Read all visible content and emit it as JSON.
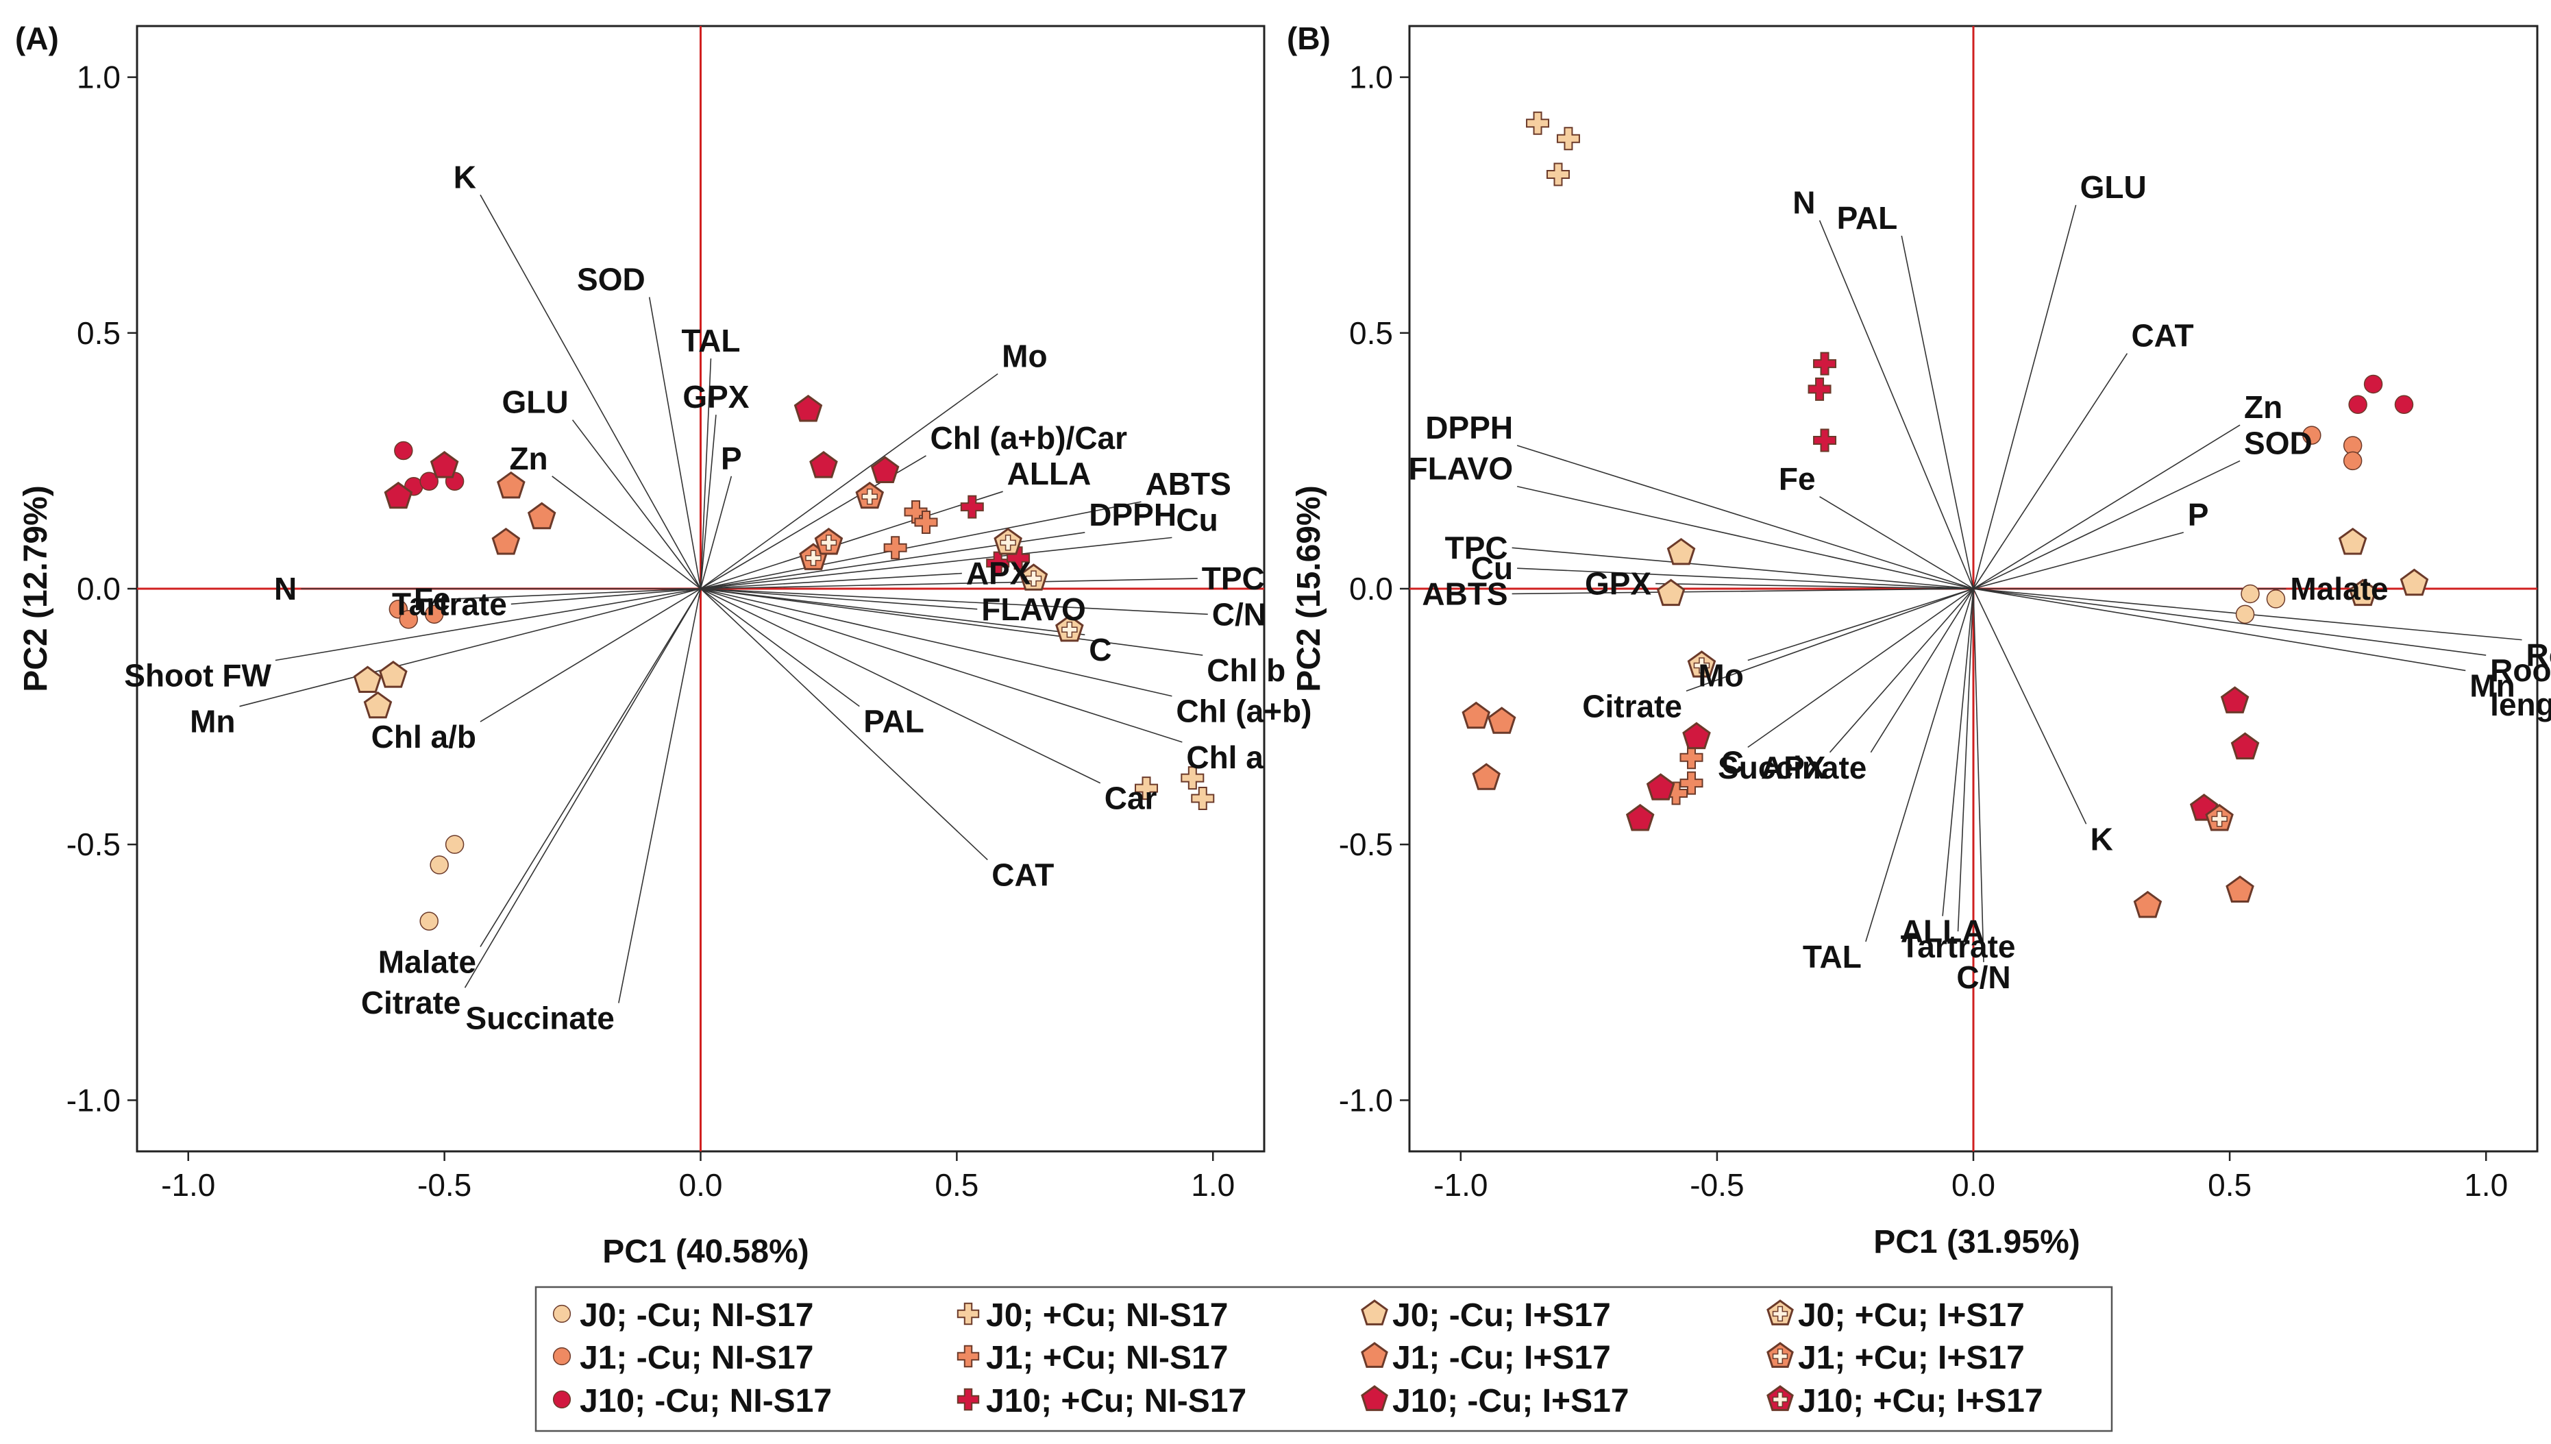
{
  "colors": {
    "J0": "#f6cfa0",
    "J1": "#ef8a62",
    "J10": "#d1183f",
    "axis_line": "#d02020",
    "vector": "#333333",
    "frame": "#222222",
    "marker_edge": "#6b3a2a"
  },
  "legend": {
    "placement": "bottom-center",
    "entries": [
      {
        "label": "J0; -Cu; NI-S17",
        "group": "J0",
        "shape": "circle"
      },
      {
        "label": "J0; +Cu; NI-S17",
        "group": "J0",
        "shape": "cross"
      },
      {
        "label": "J0; -Cu; I+S17",
        "group": "J0",
        "shape": "pentagon"
      },
      {
        "label": "J0; +Cu; I+S17",
        "group": "J0",
        "shape": "pentagon-cross"
      },
      {
        "label": "J1; -Cu; NI-S17",
        "group": "J1",
        "shape": "circle"
      },
      {
        "label": "J1; +Cu; NI-S17",
        "group": "J1",
        "shape": "cross"
      },
      {
        "label": "J1; -Cu; I+S17",
        "group": "J1",
        "shape": "pentagon"
      },
      {
        "label": "J1; +Cu; I+S17",
        "group": "J1",
        "shape": "pentagon-cross"
      },
      {
        "label": "J10; -Cu; NI-S17",
        "group": "J10",
        "shape": "circle"
      },
      {
        "label": "J10; +Cu; NI-S17",
        "group": "J10",
        "shape": "cross"
      },
      {
        "label": "J10; -Cu; I+S17",
        "group": "J10",
        "shape": "pentagon"
      },
      {
        "label": "J10; +Cu; I+S17",
        "group": "J10",
        "shape": "pentagon-cross"
      }
    ]
  },
  "chart_data": [
    {
      "type": "scatter",
      "panel_label": "(A)",
      "xlabel": "PC1 (40.58%)",
      "ylabel": "PC2 (12.79%)",
      "xlim": [
        -1.1,
        1.1
      ],
      "ylim": [
        -1.1,
        1.1
      ],
      "xticks": [
        -1.0,
        -0.5,
        0.0,
        0.5,
        1.0
      ],
      "yticks": [
        -1.0,
        -0.5,
        0.0,
        0.5,
        1.0
      ],
      "xtick_labels": [
        "-1.0",
        "-0.5",
        "0.0",
        "0.5",
        "1.0"
      ],
      "ytick_labels": [
        "-1.0",
        "-0.5",
        "0.0",
        "0.5",
        "1.0"
      ],
      "grid": false,
      "loadings": [
        {
          "label": "K",
          "x": -0.43,
          "y": 0.77
        },
        {
          "label": "SOD",
          "x": -0.1,
          "y": 0.57
        },
        {
          "label": "TAL",
          "x": 0.02,
          "y": 0.45
        },
        {
          "label": "GPX",
          "x": 0.03,
          "y": 0.34
        },
        {
          "label": "P",
          "x": 0.06,
          "y": 0.22
        },
        {
          "label": "Mo",
          "x": 0.58,
          "y": 0.42
        },
        {
          "label": "GLU",
          "x": -0.25,
          "y": 0.33
        },
        {
          "label": "Zn",
          "x": -0.29,
          "y": 0.22
        },
        {
          "label": "Chl (a+b)/Car",
          "x": 0.44,
          "y": 0.26
        },
        {
          "label": "ALLA",
          "x": 0.59,
          "y": 0.19
        },
        {
          "label": "ABTS",
          "x": 0.86,
          "y": 0.17
        },
        {
          "label": "DPPH",
          "x": 0.75,
          "y": 0.11
        },
        {
          "label": "Cu",
          "x": 0.92,
          "y": 0.1
        },
        {
          "label": "APX",
          "x": 0.51,
          "y": 0.03
        },
        {
          "label": "TPC",
          "x": 0.97,
          "y": 0.02
        },
        {
          "label": "FLAVO",
          "x": 0.54,
          "y": -0.04
        },
        {
          "label": "C/N",
          "x": 0.99,
          "y": -0.05
        },
        {
          "label": "C",
          "x": 0.75,
          "y": -0.09
        },
        {
          "label": "Chl b",
          "x": 0.98,
          "y": -0.13
        },
        {
          "label": "Chl (a+b)",
          "x": 0.92,
          "y": -0.21
        },
        {
          "label": "Chl a",
          "x": 0.94,
          "y": -0.3
        },
        {
          "label": "Car",
          "x": 0.78,
          "y": -0.38
        },
        {
          "label": "PAL",
          "x": 0.31,
          "y": -0.23
        },
        {
          "label": "CAT",
          "x": 0.56,
          "y": -0.53
        },
        {
          "label": "Tartrate",
          "x": -0.37,
          "y": -0.03
        },
        {
          "label": "N",
          "x": -0.78,
          "y": 0.0
        },
        {
          "label": "Fe",
          "x": -0.48,
          "y": -0.02
        },
        {
          "label": "Shoot FW",
          "x": -0.83,
          "y": -0.14
        },
        {
          "label": "Mn",
          "x": -0.9,
          "y": -0.23
        },
        {
          "label": "Chl a/b",
          "x": -0.43,
          "y": -0.26
        },
        {
          "label": "Malate",
          "x": -0.43,
          "y": -0.7
        },
        {
          "label": "Citrate",
          "x": -0.46,
          "y": -0.78
        },
        {
          "label": "Succinate",
          "x": -0.16,
          "y": -0.81
        }
      ],
      "scores": [
        {
          "group": "J0",
          "shape": "circle",
          "points": [
            [
              -0.48,
              -0.5
            ],
            [
              -0.51,
              -0.54
            ],
            [
              -0.53,
              -0.65
            ]
          ]
        },
        {
          "group": "J1",
          "shape": "circle",
          "points": [
            [
              -0.59,
              -0.04
            ],
            [
              -0.57,
              -0.06
            ],
            [
              -0.52,
              -0.05
            ]
          ]
        },
        {
          "group": "J10",
          "shape": "circle",
          "points": [
            [
              -0.58,
              0.27
            ],
            [
              -0.56,
              0.2
            ],
            [
              -0.53,
              0.21
            ],
            [
              -0.48,
              0.21
            ]
          ]
        },
        {
          "group": "J0",
          "shape": "cross",
          "points": [
            [
              0.87,
              -0.39
            ],
            [
              0.96,
              -0.37
            ],
            [
              0.98,
              -0.41
            ]
          ]
        },
        {
          "group": "J1",
          "shape": "cross",
          "points": [
            [
              0.38,
              0.08
            ],
            [
              0.42,
              0.15
            ],
            [
              0.44,
              0.13
            ]
          ]
        },
        {
          "group": "J10",
          "shape": "cross",
          "points": [
            [
              0.53,
              0.16
            ],
            [
              0.58,
              0.05
            ],
            [
              0.62,
              0.06
            ]
          ]
        },
        {
          "group": "J0",
          "shape": "pentagon",
          "points": [
            [
              -0.65,
              -0.18
            ],
            [
              -0.6,
              -0.17
            ],
            [
              -0.63,
              -0.23
            ]
          ]
        },
        {
          "group": "J1",
          "shape": "pentagon",
          "points": [
            [
              -0.37,
              0.2
            ],
            [
              -0.31,
              0.14
            ],
            [
              -0.38,
              0.09
            ]
          ]
        },
        {
          "group": "J10",
          "shape": "pentagon",
          "points": [
            [
              -0.59,
              0.18
            ],
            [
              -0.5,
              0.24
            ],
            [
              0.21,
              0.35
            ],
            [
              0.24,
              0.24
            ],
            [
              0.36,
              0.23
            ]
          ]
        },
        {
          "group": "J0",
          "shape": "pentagon-cross",
          "points": [
            [
              0.6,
              0.09
            ],
            [
              0.65,
              0.02
            ],
            [
              0.72,
              -0.08
            ]
          ]
        },
        {
          "group": "J1",
          "shape": "pentagon-cross",
          "points": [
            [
              0.22,
              0.06
            ],
            [
              0.25,
              0.09
            ],
            [
              0.33,
              0.18
            ]
          ]
        }
      ]
    },
    {
      "type": "scatter",
      "panel_label": "(B)",
      "xlabel": "PC1 (31.95%)",
      "ylabel": "PC2 (15.69%)",
      "xlim": [
        -1.1,
        1.1
      ],
      "ylim": [
        -1.1,
        1.1
      ],
      "xticks": [
        -1.0,
        -0.5,
        0.0,
        0.5,
        1.0
      ],
      "yticks": [
        -1.0,
        -0.5,
        0.0,
        0.5,
        1.0
      ],
      "xtick_labels": [
        "-1.0",
        "-0.5",
        "0.0",
        "0.5",
        "1.0"
      ],
      "ytick_labels": [
        "-1.0",
        "-0.5",
        "0.0",
        "0.5",
        "1.0"
      ],
      "grid": false,
      "loadings": [
        {
          "label": "N",
          "x": -0.3,
          "y": 0.72
        },
        {
          "label": "PAL",
          "x": -0.14,
          "y": 0.69
        },
        {
          "label": "GLU",
          "x": 0.2,
          "y": 0.75
        },
        {
          "label": "CAT",
          "x": 0.3,
          "y": 0.46
        },
        {
          "label": "Zn",
          "x": 0.52,
          "y": 0.32
        },
        {
          "label": "SOD",
          "x": 0.52,
          "y": 0.25
        },
        {
          "label": "P",
          "x": 0.41,
          "y": 0.11
        },
        {
          "label": "DPPH",
          "x": -0.89,
          "y": 0.28
        },
        {
          "label": "FLAVO",
          "x": -0.89,
          "y": 0.2
        },
        {
          "label": "Fe",
          "x": -0.3,
          "y": 0.18
        },
        {
          "label": "TPC",
          "x": -0.9,
          "y": 0.08
        },
        {
          "label": "Cu",
          "x": -0.89,
          "y": 0.04
        },
        {
          "label": "ABTS",
          "x": -0.9,
          "y": -0.01
        },
        {
          "label": "GPX",
          "x": -0.62,
          "y": 0.01
        },
        {
          "label": "Malate",
          "x": 0.61,
          "y": 0.0
        },
        {
          "label": "Root FW",
          "x": 1.07,
          "y": -0.1
        },
        {
          "label": "Root length",
          "x": 1.0,
          "y": -0.13
        },
        {
          "label": "Mn",
          "x": 0.96,
          "y": -0.16
        },
        {
          "label": "Citrate",
          "x": -0.56,
          "y": -0.2
        },
        {
          "label": "Mo",
          "x": -0.44,
          "y": -0.14
        },
        {
          "label": "Succinate",
          "x": -0.2,
          "y": -0.32
        },
        {
          "label": "C",
          "x": -0.44,
          "y": -0.31
        },
        {
          "label": "APX",
          "x": -0.28,
          "y": -0.32
        },
        {
          "label": "K",
          "x": 0.22,
          "y": -0.46
        },
        {
          "label": "ALLA",
          "x": -0.06,
          "y": -0.64
        },
        {
          "label": "Tartrate",
          "x": -0.03,
          "y": -0.67
        },
        {
          "label": "TAL",
          "x": -0.21,
          "y": -0.69
        },
        {
          "label": "C/N",
          "x": 0.02,
          "y": -0.73
        }
      ],
      "scores": [
        {
          "group": "J0",
          "shape": "circle",
          "points": [
            [
              0.54,
              -0.01
            ],
            [
              0.59,
              -0.02
            ],
            [
              0.53,
              -0.05
            ]
          ]
        },
        {
          "group": "J1",
          "shape": "circle",
          "points": [
            [
              0.66,
              0.3
            ],
            [
              0.74,
              0.28
            ],
            [
              0.74,
              0.25
            ]
          ]
        },
        {
          "group": "J10",
          "shape": "circle",
          "points": [
            [
              0.75,
              0.36
            ],
            [
              0.78,
              0.4
            ],
            [
              0.84,
              0.36
            ]
          ]
        },
        {
          "group": "J0",
          "shape": "cross",
          "points": [
            [
              -0.85,
              0.91
            ],
            [
              -0.79,
              0.88
            ],
            [
              -0.81,
              0.81
            ]
          ]
        },
        {
          "group": "J1",
          "shape": "cross",
          "points": [
            [
              -0.55,
              -0.33
            ],
            [
              -0.58,
              -0.4
            ],
            [
              -0.55,
              -0.38
            ]
          ]
        },
        {
          "group": "J10",
          "shape": "cross",
          "points": [
            [
              -0.29,
              0.44
            ],
            [
              -0.3,
              0.39
            ],
            [
              -0.29,
              0.29
            ]
          ]
        },
        {
          "group": "J0",
          "shape": "pentagon",
          "points": [
            [
              -0.57,
              0.07
            ],
            [
              -0.59,
              -0.01
            ],
            [
              0.74,
              0.09
            ],
            [
              0.76,
              -0.01
            ],
            [
              0.86,
              0.01
            ]
          ]
        },
        {
          "group": "J1",
          "shape": "pentagon",
          "points": [
            [
              -0.97,
              -0.25
            ],
            [
              -0.92,
              -0.26
            ],
            [
              -0.95,
              -0.37
            ],
            [
              0.34,
              -0.62
            ],
            [
              0.52,
              -0.59
            ]
          ]
        },
        {
          "group": "J10",
          "shape": "pentagon",
          "points": [
            [
              -0.65,
              -0.45
            ],
            [
              -0.61,
              -0.39
            ],
            [
              -0.54,
              -0.29
            ],
            [
              0.51,
              -0.22
            ],
            [
              0.53,
              -0.31
            ],
            [
              0.45,
              -0.43
            ]
          ]
        },
        {
          "group": "J0",
          "shape": "pentagon-cross",
          "points": [
            [
              -0.53,
              -0.15
            ]
          ]
        },
        {
          "group": "J1",
          "shape": "pentagon-cross",
          "points": [
            [
              0.48,
              -0.45
            ]
          ]
        }
      ]
    }
  ]
}
